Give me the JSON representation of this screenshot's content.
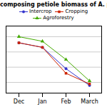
{
  "chart_data": {
    "type": "line",
    "title": "composing petiole biomass of A. pr",
    "categories": [
      "Dec",
      "Jan",
      "Feb",
      "March"
    ],
    "series": [
      {
        "name": "Intercrop",
        "color": "#3333cc",
        "marker": "circle",
        "values": [
          96,
          93,
          79,
          68
        ]
      },
      {
        "name": "Cropping",
        "color": "#cc2200",
        "marker": "square",
        "values": [
          96,
          93,
          76,
          69
        ]
      },
      {
        "name": "Agroforestry",
        "color": "#44aa00",
        "marker": "triangle",
        "values": [
          100,
          97,
          85,
          71
        ]
      }
    ],
    "ylim": [
      63,
      107
    ],
    "yticks": [
      70,
      80,
      90,
      100
    ],
    "grid": true,
    "tick_labels": "x",
    "legend": "top"
  }
}
